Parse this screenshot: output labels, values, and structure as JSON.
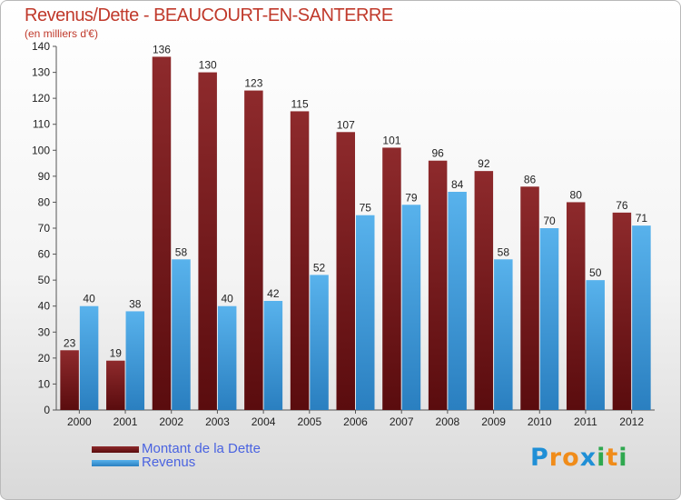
{
  "header": {
    "title": "Revenus/Dette - BEAUCOURT-EN-SANTERRE",
    "subtitle": "(en milliers d'€)"
  },
  "colors": {
    "dette": "#7a1a1c",
    "revenus": "#3a9ad9",
    "title": "#c0392b"
  },
  "legend": {
    "dette_label": "Montant de la Dette",
    "revenus_label": "Revenus"
  },
  "logo": {
    "text": "Proxiti",
    "letters": [
      {
        "ch": "P",
        "color": "#1f8fd6"
      },
      {
        "ch": "r",
        "color": "#f08c1a"
      },
      {
        "ch": "o",
        "color": "#f08c1a"
      },
      {
        "ch": "x",
        "color": "#1f8fd6"
      },
      {
        "ch": "i",
        "color": "#2fa84f"
      },
      {
        "ch": "t",
        "color": "#f08c1a"
      },
      {
        "ch": "i",
        "color": "#2fa84f"
      }
    ]
  },
  "chart_data": {
    "type": "bar",
    "title": "Revenus/Dette - BEAUCOURT-EN-SANTERRE",
    "subtitle": "(en milliers d'€)",
    "xlabel": "",
    "ylabel": "",
    "ylim": [
      0,
      140
    ],
    "yticks": [
      0,
      10,
      20,
      30,
      40,
      50,
      60,
      70,
      80,
      90,
      100,
      110,
      120,
      130,
      140
    ],
    "grid": false,
    "legend_position": "bottom-left",
    "categories": [
      "2000",
      "2001",
      "2002",
      "2003",
      "2004",
      "2005",
      "2006",
      "2007",
      "2008",
      "2009",
      "2010",
      "2011",
      "2012"
    ],
    "series": [
      {
        "name": "Montant de la Dette",
        "color": "#7a1a1c",
        "values": [
          23,
          19,
          136,
          130,
          123,
          115,
          107,
          101,
          96,
          92,
          86,
          80,
          76
        ]
      },
      {
        "name": "Revenus",
        "color": "#3a9ad9",
        "values": [
          40,
          38,
          58,
          40,
          42,
          52,
          75,
          79,
          84,
          58,
          70,
          50,
          71
        ]
      }
    ]
  }
}
